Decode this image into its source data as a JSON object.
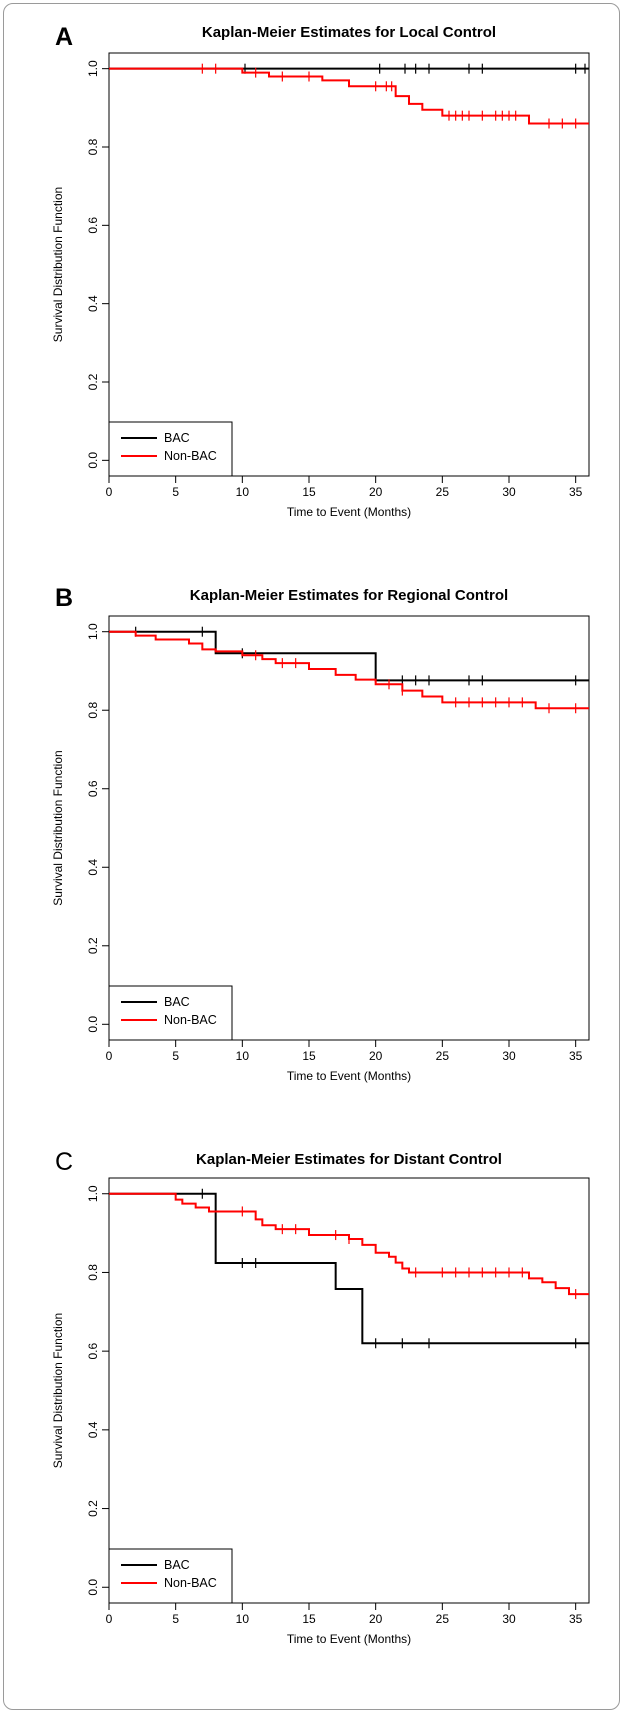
{
  "chart_data": [
    {
      "panel": "A",
      "type": "line",
      "step": true,
      "title": "Kaplan-Meier Estimates for Local Control",
      "xlabel": "Time to Event (Months)",
      "ylabel": "Survival Distribution Function",
      "xlim": [
        0,
        36
      ],
      "ylim": [
        0,
        1
      ],
      "xticks": [
        "0",
        "5",
        "10",
        "15",
        "20",
        "25",
        "30",
        "35"
      ],
      "yticks": [
        "0.0",
        "0.2",
        "0.4",
        "0.6",
        "0.8",
        "1.0"
      ],
      "legend": {
        "position": "bottom-left",
        "entries": [
          "BAC",
          "Non-BAC"
        ]
      },
      "series": [
        {
          "name": "BAC",
          "color": "#000000",
          "steps": [
            [
              0,
              1.0
            ],
            [
              36,
              1.0
            ]
          ],
          "censored": [
            10.2,
            20.3,
            22.2,
            23,
            24,
            27,
            28,
            35,
            35.7
          ]
        },
        {
          "name": "Non-BAC",
          "color": "#ff0000",
          "steps": [
            [
              0,
              1.0
            ],
            [
              10,
              0.99
            ],
            [
              12,
              0.98
            ],
            [
              16,
              0.97
            ],
            [
              18,
              0.955
            ],
            [
              21.5,
              0.93
            ],
            [
              22.5,
              0.91
            ],
            [
              23.5,
              0.895
            ],
            [
              25,
              0.88
            ],
            [
              31.5,
              0.86
            ],
            [
              36,
              0.86
            ]
          ],
          "censored": [
            7,
            8,
            11,
            13,
            15,
            20,
            20.8,
            21.2,
            25.5,
            26,
            26.5,
            27,
            28,
            29,
            29.5,
            30,
            30.5,
            33,
            34,
            35
          ]
        }
      ]
    },
    {
      "panel": "B",
      "type": "line",
      "step": true,
      "title": "Kaplan-Meier Estimates for Regional Control",
      "xlabel": "Time to Event (Months)",
      "ylabel": "Survival Distribution Function",
      "xlim": [
        0,
        36
      ],
      "ylim": [
        0,
        1
      ],
      "xticks": [
        "0",
        "5",
        "10",
        "15",
        "20",
        "25",
        "30",
        "35"
      ],
      "yticks": [
        "0.0",
        "0.2",
        "0.4",
        "0.6",
        "0.8",
        "1.0"
      ],
      "legend": {
        "position": "bottom-left",
        "entries": [
          "BAC",
          "Non-BAC"
        ]
      },
      "series": [
        {
          "name": "BAC",
          "color": "#000000",
          "steps": [
            [
              0,
              1.0
            ],
            [
              8,
              0.945
            ],
            [
              20,
              0.876
            ],
            [
              36,
              0.876
            ]
          ],
          "censored": [
            2,
            7,
            10,
            22,
            23,
            24,
            27,
            28,
            35
          ]
        },
        {
          "name": "Non-BAC",
          "color": "#ff0000",
          "steps": [
            [
              0,
              1.0
            ],
            [
              2,
              0.99
            ],
            [
              3.5,
              0.98
            ],
            [
              6,
              0.97
            ],
            [
              7,
              0.955
            ],
            [
              8,
              0.95
            ],
            [
              10,
              0.94
            ],
            [
              11.5,
              0.93
            ],
            [
              12.5,
              0.92
            ],
            [
              15,
              0.905
            ],
            [
              17,
              0.89
            ],
            [
              18.5,
              0.878
            ],
            [
              20,
              0.866
            ],
            [
              22,
              0.85
            ],
            [
              23.5,
              0.835
            ],
            [
              25,
              0.82
            ],
            [
              32,
              0.805
            ],
            [
              36,
              0.805
            ]
          ],
          "censored": [
            11,
            13,
            14,
            21,
            22,
            26,
            27,
            28,
            29,
            30,
            31,
            33,
            35
          ]
        }
      ]
    },
    {
      "panel": "C",
      "type": "line",
      "step": true,
      "title": "Kaplan-Meier Estimates for Distant Control",
      "xlabel": "Time to Event (Months)",
      "ylabel": "Survival Distribution Function",
      "xlim": [
        0,
        36
      ],
      "ylim": [
        0,
        1
      ],
      "xticks": [
        "0",
        "5",
        "10",
        "15",
        "20",
        "25",
        "30",
        "35"
      ],
      "yticks": [
        "0.0",
        "0.2",
        "0.4",
        "0.6",
        "0.8",
        "1.0"
      ],
      "legend": {
        "position": "bottom-left",
        "entries": [
          "BAC",
          "Non-BAC"
        ]
      },
      "series": [
        {
          "name": "BAC",
          "color": "#000000",
          "steps": [
            [
              0,
              1.0
            ],
            [
              8,
              0.824
            ],
            [
              17,
              0.758
            ],
            [
              19,
              0.62
            ],
            [
              36,
              0.62
            ]
          ],
          "censored": [
            7,
            10,
            11,
            20,
            22,
            24,
            35
          ]
        },
        {
          "name": "Non-BAC",
          "color": "#ff0000",
          "steps": [
            [
              0,
              1.0
            ],
            [
              5,
              0.985
            ],
            [
              5.5,
              0.975
            ],
            [
              6.5,
              0.965
            ],
            [
              7.5,
              0.955
            ],
            [
              11,
              0.935
            ],
            [
              11.5,
              0.92
            ],
            [
              12.5,
              0.91
            ],
            [
              15,
              0.895
            ],
            [
              18,
              0.885
            ],
            [
              19,
              0.87
            ],
            [
              20,
              0.85
            ],
            [
              21,
              0.84
            ],
            [
              21.5,
              0.825
            ],
            [
              22,
              0.81
            ],
            [
              22.5,
              0.8
            ],
            [
              31.5,
              0.785
            ],
            [
              32.5,
              0.775
            ],
            [
              33.5,
              0.76
            ],
            [
              34.5,
              0.745
            ],
            [
              36,
              0.745
            ]
          ],
          "censored": [
            10,
            13,
            14,
            17,
            18,
            23,
            25,
            26,
            27,
            28,
            29,
            30,
            31,
            35
          ]
        }
      ]
    }
  ],
  "panel_letters": [
    "A",
    "B",
    "C"
  ]
}
